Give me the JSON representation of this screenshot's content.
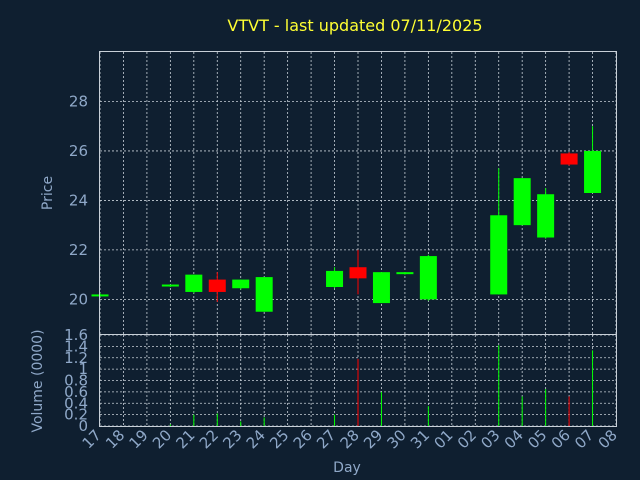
{
  "chart_data": {
    "type": "candlestick",
    "title": "VTVT - last updated 07/11/2025",
    "xlabel": "Day",
    "categories": [
      "17",
      "18",
      "19",
      "20",
      "21",
      "22",
      "23",
      "24",
      "25",
      "26",
      "27",
      "28",
      "29",
      "30",
      "31",
      "01",
      "02",
      "03",
      "04",
      "05",
      "06",
      "07",
      "08"
    ],
    "price_panel": {
      "ylabel": "Price",
      "ylim": [
        18.6,
        30
      ],
      "yticks": [
        20,
        22,
        24,
        26,
        28
      ],
      "candles": [
        {
          "day": "17",
          "open": 20.2,
          "high": 20.25,
          "low": 20.15,
          "close": 20.2
        },
        {
          "day": "20",
          "open": 20.55,
          "high": 20.6,
          "low": 20.5,
          "close": 20.6
        },
        {
          "day": "21",
          "open": 20.3,
          "high": 21.0,
          "low": 20.25,
          "close": 21.0
        },
        {
          "day": "22",
          "open": 20.8,
          "high": 21.1,
          "low": 19.9,
          "close": 20.3
        },
        {
          "day": "23",
          "open": 20.45,
          "high": 20.8,
          "low": 20.4,
          "close": 20.8
        },
        {
          "day": "24",
          "open": 19.5,
          "high": 20.9,
          "low": 19.5,
          "close": 20.9
        },
        {
          "day": "27",
          "open": 20.5,
          "high": 21.3,
          "low": 20.45,
          "close": 21.15
        },
        {
          "day": "28",
          "open": 21.3,
          "high": 22.0,
          "low": 20.2,
          "close": 20.85
        },
        {
          "day": "29",
          "open": 19.85,
          "high": 21.1,
          "low": 19.85,
          "close": 21.1
        },
        {
          "day": "30",
          "open": 21.05,
          "high": 21.1,
          "low": 21.0,
          "close": 21.1
        },
        {
          "day": "31",
          "open": 20.0,
          "high": 21.8,
          "low": 19.95,
          "close": 21.75
        },
        {
          "day": "03",
          "open": 20.2,
          "high": 25.3,
          "low": 20.2,
          "close": 23.4
        },
        {
          "day": "04",
          "open": 23.0,
          "high": 24.9,
          "low": 23.0,
          "close": 24.9
        },
        {
          "day": "05",
          "open": 22.5,
          "high": 24.5,
          "low": 22.45,
          "close": 24.25
        },
        {
          "day": "06",
          "open": 25.9,
          "high": 25.95,
          "low": 25.4,
          "close": 25.45
        },
        {
          "day": "07",
          "open": 24.3,
          "high": 27.0,
          "low": 24.3,
          "close": 26.0
        }
      ]
    },
    "volume_panel": {
      "ylabel": "Volume (0000)",
      "ylim": [
        0,
        1.6
      ],
      "yticks": [
        "0",
        "0.2",
        "0.4",
        "0.6",
        "0.8",
        "1",
        "1.2",
        "1.4",
        "1.6"
      ],
      "bars": [
        {
          "day": "20",
          "value": 0.03,
          "direction": "up"
        },
        {
          "day": "21",
          "value": 0.2,
          "direction": "up"
        },
        {
          "day": "22",
          "value": 0.22,
          "direction": "up"
        },
        {
          "day": "23",
          "value": 0.08,
          "direction": "up"
        },
        {
          "day": "24",
          "value": 0.15,
          "direction": "up"
        },
        {
          "day": "27",
          "value": 0.2,
          "direction": "up"
        },
        {
          "day": "28",
          "value": 1.18,
          "direction": "down"
        },
        {
          "day": "29",
          "value": 0.6,
          "direction": "up"
        },
        {
          "day": "31",
          "value": 0.35,
          "direction": "up"
        },
        {
          "day": "03",
          "value": 1.42,
          "direction": "up"
        },
        {
          "day": "04",
          "value": 0.52,
          "direction": "up"
        },
        {
          "day": "05",
          "value": 0.65,
          "direction": "up"
        },
        {
          "day": "06",
          "value": 0.52,
          "direction": "down"
        },
        {
          "day": "07",
          "value": 1.33,
          "direction": "up"
        }
      ]
    },
    "grid": true,
    "colors": {
      "background": "#0f1f30",
      "up": "#00ff00",
      "down": "#ff0000",
      "title": "#ffff33",
      "text": "#8fa8c8",
      "grid": "#c8d0d8"
    }
  }
}
